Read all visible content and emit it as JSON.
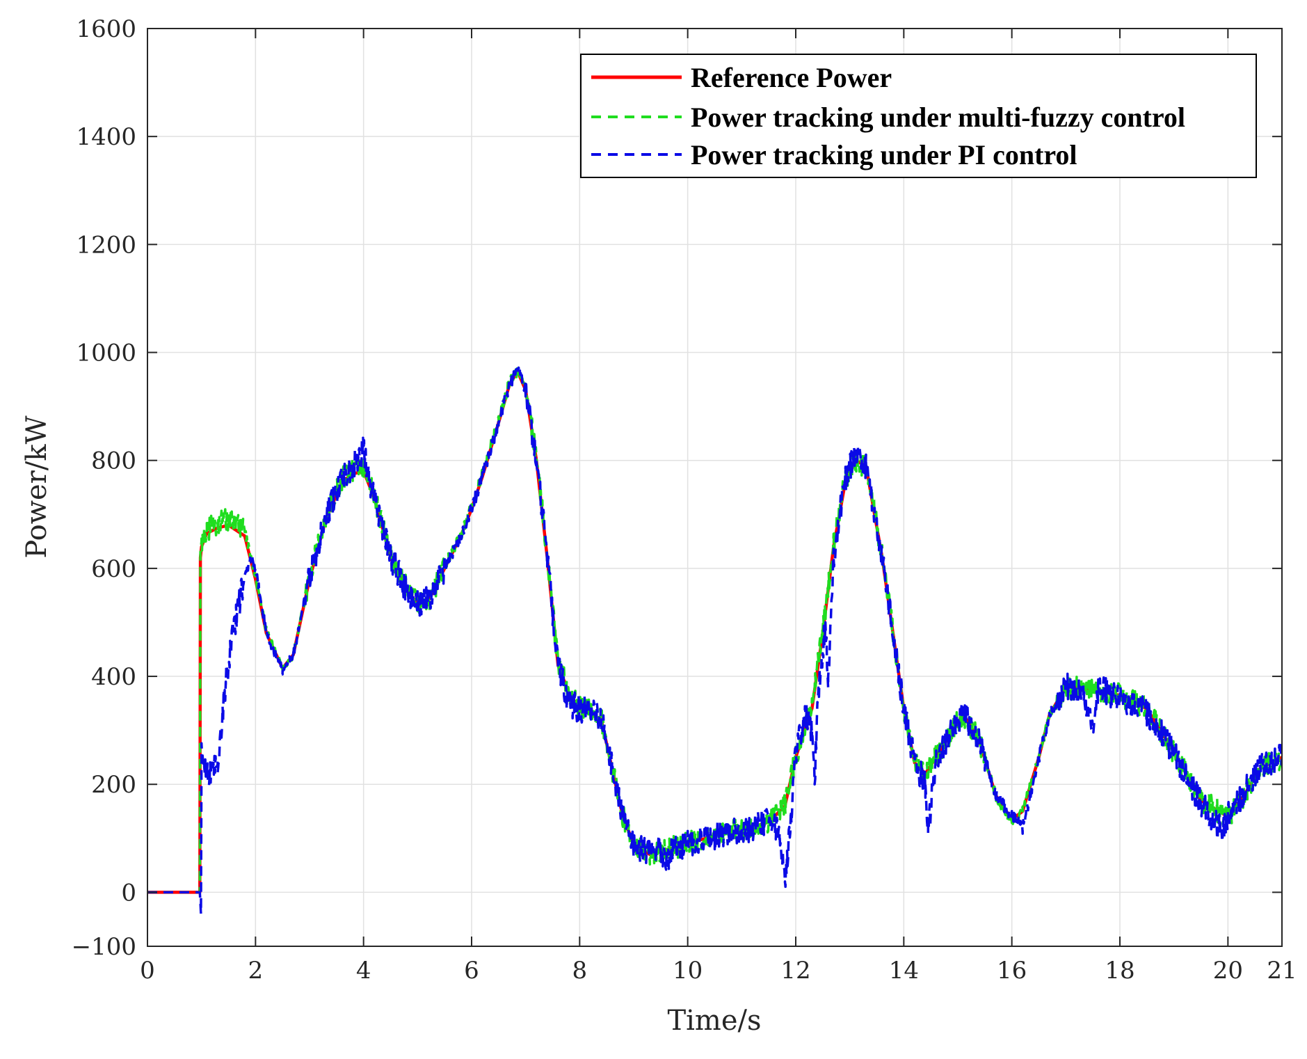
{
  "chart_data": {
    "type": "line",
    "xlabel": "Time/s",
    "ylabel": "Power/kW",
    "xlim": [
      0,
      21
    ],
    "ylim": [
      -100,
      1600
    ],
    "xticks": [
      0,
      2,
      4,
      6,
      8,
      10,
      12,
      14,
      16,
      18,
      20,
      21
    ],
    "yticks": [
      -100,
      0,
      200,
      400,
      600,
      800,
      1000,
      1200,
      1400,
      1600
    ],
    "grid": true,
    "legend_position": "top-right",
    "series": [
      {
        "name": "Reference Power",
        "color": "#ff0000",
        "style": "solid",
        "noise": 0,
        "x": [
          0,
          0.97,
          0.98,
          1.0,
          1.1,
          1.3,
          1.5,
          1.8,
          2.0,
          2.2,
          2.5,
          2.7,
          3.0,
          3.3,
          3.6,
          3.8,
          4.0,
          4.2,
          4.5,
          4.8,
          5.0,
          5.2,
          5.5,
          5.8,
          6.0,
          6.2,
          6.5,
          6.7,
          6.85,
          7.0,
          7.2,
          7.4,
          7.6,
          7.8,
          8.0,
          8.2,
          8.4,
          8.6,
          8.8,
          9.0,
          9.3,
          9.5,
          10.0,
          10.5,
          11.0,
          11.5,
          11.8,
          12.0,
          12.3,
          12.5,
          12.7,
          12.9,
          13.1,
          13.3,
          13.6,
          13.8,
          14.0,
          14.2,
          14.4,
          14.6,
          14.9,
          15.1,
          15.4,
          15.7,
          16.0,
          16.2,
          16.5,
          16.7,
          17.0,
          17.3,
          17.7,
          18.0,
          18.5,
          19.0,
          19.5,
          20.0,
          20.3,
          20.6,
          21.0
        ],
        "y": [
          0,
          0,
          620,
          640,
          665,
          675,
          680,
          660,
          580,
          480,
          415,
          440,
          580,
          690,
          760,
          775,
          780,
          730,
          620,
          560,
          535,
          540,
          600,
          660,
          710,
          770,
          870,
          940,
          965,
          930,
          800,
          620,
          420,
          370,
          340,
          330,
          320,
          230,
          140,
          90,
          70,
          75,
          90,
          105,
          115,
          130,
          160,
          250,
          340,
          480,
          640,
          750,
          800,
          790,
          620,
          480,
          340,
          240,
          220,
          250,
          300,
          330,
          280,
          180,
          135,
          150,
          250,
          330,
          380,
          380,
          370,
          365,
          340,
          260,
          170,
          140,
          180,
          230,
          250
        ]
      },
      {
        "name": "Power tracking under multi-fuzzy control",
        "color": "#1fdd1f",
        "style": "dashed",
        "noise": 22,
        "x": [
          0,
          0.97,
          0.98,
          1.0,
          1.1,
          1.3,
          1.5,
          1.8,
          2.0,
          2.2,
          2.5,
          2.7,
          3.0,
          3.3,
          3.6,
          3.8,
          4.0,
          4.2,
          4.5,
          4.8,
          5.0,
          5.2,
          5.5,
          5.8,
          6.0,
          6.2,
          6.5,
          6.7,
          6.85,
          7.0,
          7.2,
          7.4,
          7.6,
          7.8,
          8.0,
          8.2,
          8.4,
          8.6,
          8.8,
          9.0,
          9.3,
          9.5,
          10.0,
          10.5,
          11.0,
          11.5,
          11.8,
          12.0,
          12.3,
          12.5,
          12.7,
          12.9,
          13.1,
          13.3,
          13.6,
          13.8,
          14.0,
          14.2,
          14.4,
          14.6,
          14.9,
          15.1,
          15.4,
          15.7,
          16.0,
          16.2,
          16.5,
          16.7,
          17.0,
          17.3,
          17.7,
          18.0,
          18.5,
          19.0,
          19.5,
          20.0,
          20.3,
          20.6,
          21.0
        ],
        "y": [
          0,
          0,
          630,
          650,
          670,
          685,
          690,
          670,
          585,
          485,
          415,
          440,
          585,
          695,
          765,
          780,
          785,
          735,
          625,
          565,
          535,
          540,
          605,
          660,
          715,
          775,
          875,
          945,
          965,
          935,
          805,
          625,
          425,
          370,
          340,
          335,
          320,
          230,
          140,
          90,
          68,
          75,
          90,
          105,
          115,
          130,
          160,
          250,
          345,
          485,
          645,
          755,
          800,
          790,
          625,
          480,
          340,
          240,
          220,
          250,
          300,
          330,
          280,
          180,
          130,
          150,
          250,
          330,
          375,
          378,
          370,
          365,
          340,
          260,
          170,
          140,
          180,
          230,
          250
        ]
      },
      {
        "name": "Power tracking under PI control",
        "color": "#0a0ae6",
        "style": "dashed",
        "noise": 26,
        "x": [
          0,
          0.97,
          0.99,
          1.0,
          1.05,
          1.15,
          1.3,
          1.45,
          1.6,
          1.75,
          1.9,
          2.0,
          2.2,
          2.5,
          2.7,
          3.0,
          3.3,
          3.6,
          3.8,
          3.9,
          4.0,
          4.1,
          4.2,
          4.5,
          4.8,
          5.0,
          5.2,
          5.5,
          5.8,
          6.0,
          6.2,
          6.5,
          6.7,
          6.85,
          7.0,
          7.2,
          7.4,
          7.6,
          7.8,
          8.0,
          8.2,
          8.4,
          8.6,
          8.8,
          9.0,
          9.3,
          9.5,
          9.6,
          9.7,
          10.0,
          10.5,
          11.0,
          11.5,
          11.7,
          11.8,
          11.9,
          12.0,
          12.2,
          12.3,
          12.35,
          12.4,
          12.55,
          12.6,
          12.7,
          12.9,
          13.1,
          13.3,
          13.6,
          13.8,
          14.0,
          14.2,
          14.4,
          14.45,
          14.6,
          14.9,
          15.1,
          15.4,
          15.7,
          16.0,
          16.2,
          16.5,
          16.7,
          17.0,
          17.3,
          17.5,
          17.6,
          18.0,
          18.5,
          19.0,
          19.5,
          19.9,
          20.0,
          20.3,
          20.6,
          21.0
        ],
        "y": [
          0,
          0,
          -40,
          250,
          240,
          215,
          240,
          390,
          490,
          560,
          620,
          600,
          480,
          410,
          440,
          585,
          695,
          765,
          790,
          800,
          820,
          760,
          735,
          620,
          560,
          535,
          540,
          600,
          660,
          710,
          770,
          870,
          940,
          970,
          930,
          800,
          620,
          420,
          350,
          340,
          340,
          320,
          230,
          140,
          90,
          70,
          85,
          45,
          80,
          90,
          105,
          115,
          130,
          110,
          20,
          120,
          260,
          330,
          300,
          200,
          350,
          500,
          400,
          620,
          760,
          810,
          790,
          620,
          480,
          340,
          240,
          200,
          110,
          250,
          300,
          330,
          280,
          180,
          140,
          120,
          250,
          330,
          380,
          375,
          300,
          380,
          360,
          335,
          260,
          165,
          110,
          140,
          185,
          232,
          250
        ]
      }
    ]
  }
}
